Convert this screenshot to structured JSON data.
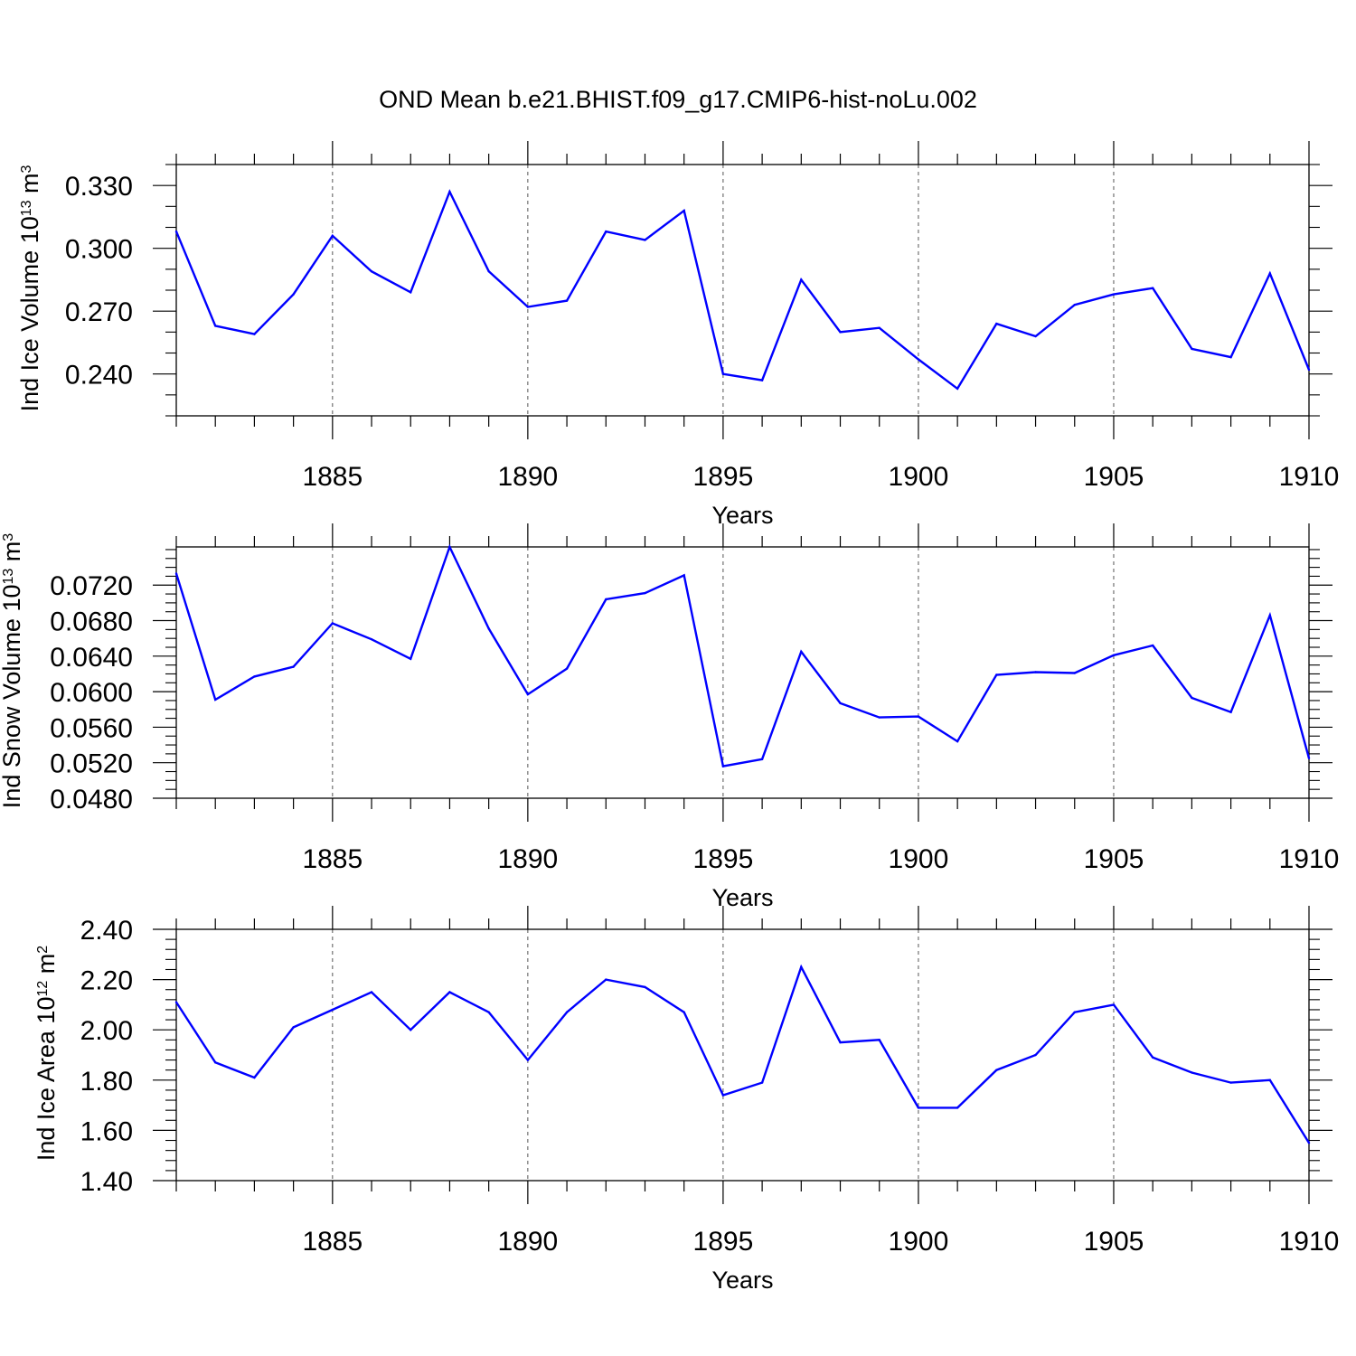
{
  "title": "OND Mean b.e21.BHIST.f09_g17.CMIP6-hist-noLu.002",
  "chart_data": [
    {
      "type": "line",
      "ylabel_main": "Ind Ice Volume 10",
      "ylabel_exp": "13",
      "ylabel_unit": " m",
      "ylabel_unit_exp": "3",
      "xlabel": "Years",
      "xlim": [
        1881,
        1910
      ],
      "ylim": [
        0.22,
        0.34
      ],
      "x_ticks": [
        1885,
        1890,
        1895,
        1900,
        1905,
        1910
      ],
      "x_tick_labels": [
        "1885",
        "1890",
        "1895",
        "1900",
        "1905",
        "1910"
      ],
      "y_ticks": [
        0.24,
        0.27,
        0.3,
        0.33
      ],
      "y_tick_labels": [
        "0.240",
        "0.270",
        "0.300",
        "0.330"
      ],
      "y_minor_step": 0.01,
      "gridlines_x": [
        1885,
        1890,
        1895,
        1900,
        1905
      ],
      "line_color": "#0000ff",
      "series": [
        {
          "name": "Ind Ice Volume",
          "x": [
            1881,
            1882,
            1883,
            1884,
            1885,
            1886,
            1887,
            1888,
            1889,
            1890,
            1891,
            1892,
            1893,
            1894,
            1895,
            1896,
            1897,
            1898,
            1899,
            1900,
            1901,
            1902,
            1903,
            1904,
            1905,
            1906,
            1907,
            1908,
            1909,
            1910
          ],
          "values": [
            0.308,
            0.263,
            0.259,
            0.278,
            0.306,
            0.289,
            0.279,
            0.327,
            0.289,
            0.272,
            0.275,
            0.308,
            0.304,
            0.318,
            0.24,
            0.237,
            0.285,
            0.26,
            0.262,
            0.247,
            0.233,
            0.264,
            0.258,
            0.273,
            0.278,
            0.281,
            0.252,
            0.248,
            0.288,
            0.242
          ]
        }
      ]
    },
    {
      "type": "line",
      "ylabel_main": "Ind Snow Volume 10",
      "ylabel_exp": "13",
      "ylabel_unit": " m",
      "ylabel_unit_exp": "3",
      "xlabel": "Years",
      "xlim": [
        1881,
        1910
      ],
      "ylim": [
        0.048,
        0.0763
      ],
      "x_ticks": [
        1885,
        1890,
        1895,
        1900,
        1905,
        1910
      ],
      "x_tick_labels": [
        "1885",
        "1890",
        "1895",
        "1900",
        "1905",
        "1910"
      ],
      "y_ticks": [
        0.048,
        0.052,
        0.056,
        0.06,
        0.064,
        0.068,
        0.072
      ],
      "y_tick_labels": [
        "0.0480",
        "0.0520",
        "0.0560",
        "0.0600",
        "0.0640",
        "0.0680",
        "0.0720"
      ],
      "y_minor_step": 0.001,
      "gridlines_x": [
        1885,
        1890,
        1895,
        1900,
        1905
      ],
      "line_color": "#0000ff",
      "series": [
        {
          "name": "Ind Snow Volume",
          "x": [
            1881,
            1882,
            1883,
            1884,
            1885,
            1886,
            1887,
            1888,
            1889,
            1890,
            1891,
            1892,
            1893,
            1894,
            1895,
            1896,
            1897,
            1898,
            1899,
            1900,
            1901,
            1902,
            1903,
            1904,
            1905,
            1906,
            1907,
            1908,
            1909,
            1910
          ],
          "values": [
            0.0733,
            0.0591,
            0.0617,
            0.0628,
            0.0677,
            0.0659,
            0.0637,
            0.0763,
            0.0671,
            0.0597,
            0.0626,
            0.0704,
            0.0711,
            0.0731,
            0.0516,
            0.0524,
            0.0645,
            0.0587,
            0.0571,
            0.0572,
            0.0544,
            0.0619,
            0.0622,
            0.0621,
            0.0641,
            0.0652,
            0.0593,
            0.0577,
            0.0686,
            0.0525
          ]
        }
      ]
    },
    {
      "type": "line",
      "ylabel_main": "Ind Ice Area 10",
      "ylabel_exp": "12",
      "ylabel_unit": " m",
      "ylabel_unit_exp": "2",
      "xlabel": "Years",
      "xlim": [
        1881,
        1910
      ],
      "ylim": [
        1.4,
        2.4
      ],
      "x_ticks": [
        1885,
        1890,
        1895,
        1900,
        1905,
        1910
      ],
      "x_tick_labels": [
        "1885",
        "1890",
        "1895",
        "1900",
        "1905",
        "1910"
      ],
      "y_ticks": [
        1.4,
        1.6,
        1.8,
        2.0,
        2.2,
        2.4
      ],
      "y_tick_labels": [
        "1.40",
        "1.60",
        "1.80",
        "2.00",
        "2.20",
        "2.40"
      ],
      "y_minor_step": 0.04,
      "gridlines_x": [
        1885,
        1890,
        1895,
        1900,
        1905
      ],
      "line_color": "#0000ff",
      "series": [
        {
          "name": "Ind Ice Area",
          "x": [
            1881,
            1882,
            1883,
            1884,
            1885,
            1886,
            1887,
            1888,
            1889,
            1890,
            1891,
            1892,
            1893,
            1894,
            1895,
            1896,
            1897,
            1898,
            1899,
            1900,
            1901,
            1902,
            1903,
            1904,
            1905,
            1906,
            1907,
            1908,
            1909,
            1910
          ],
          "values": [
            2.11,
            1.87,
            1.81,
            2.01,
            2.08,
            2.15,
            2.0,
            2.15,
            2.07,
            1.88,
            2.07,
            2.2,
            2.17,
            2.07,
            1.74,
            1.79,
            2.25,
            1.95,
            1.96,
            1.69,
            1.69,
            1.84,
            1.9,
            2.07,
            2.1,
            1.89,
            1.83,
            1.79,
            1.8,
            1.55
          ]
        }
      ]
    }
  ]
}
